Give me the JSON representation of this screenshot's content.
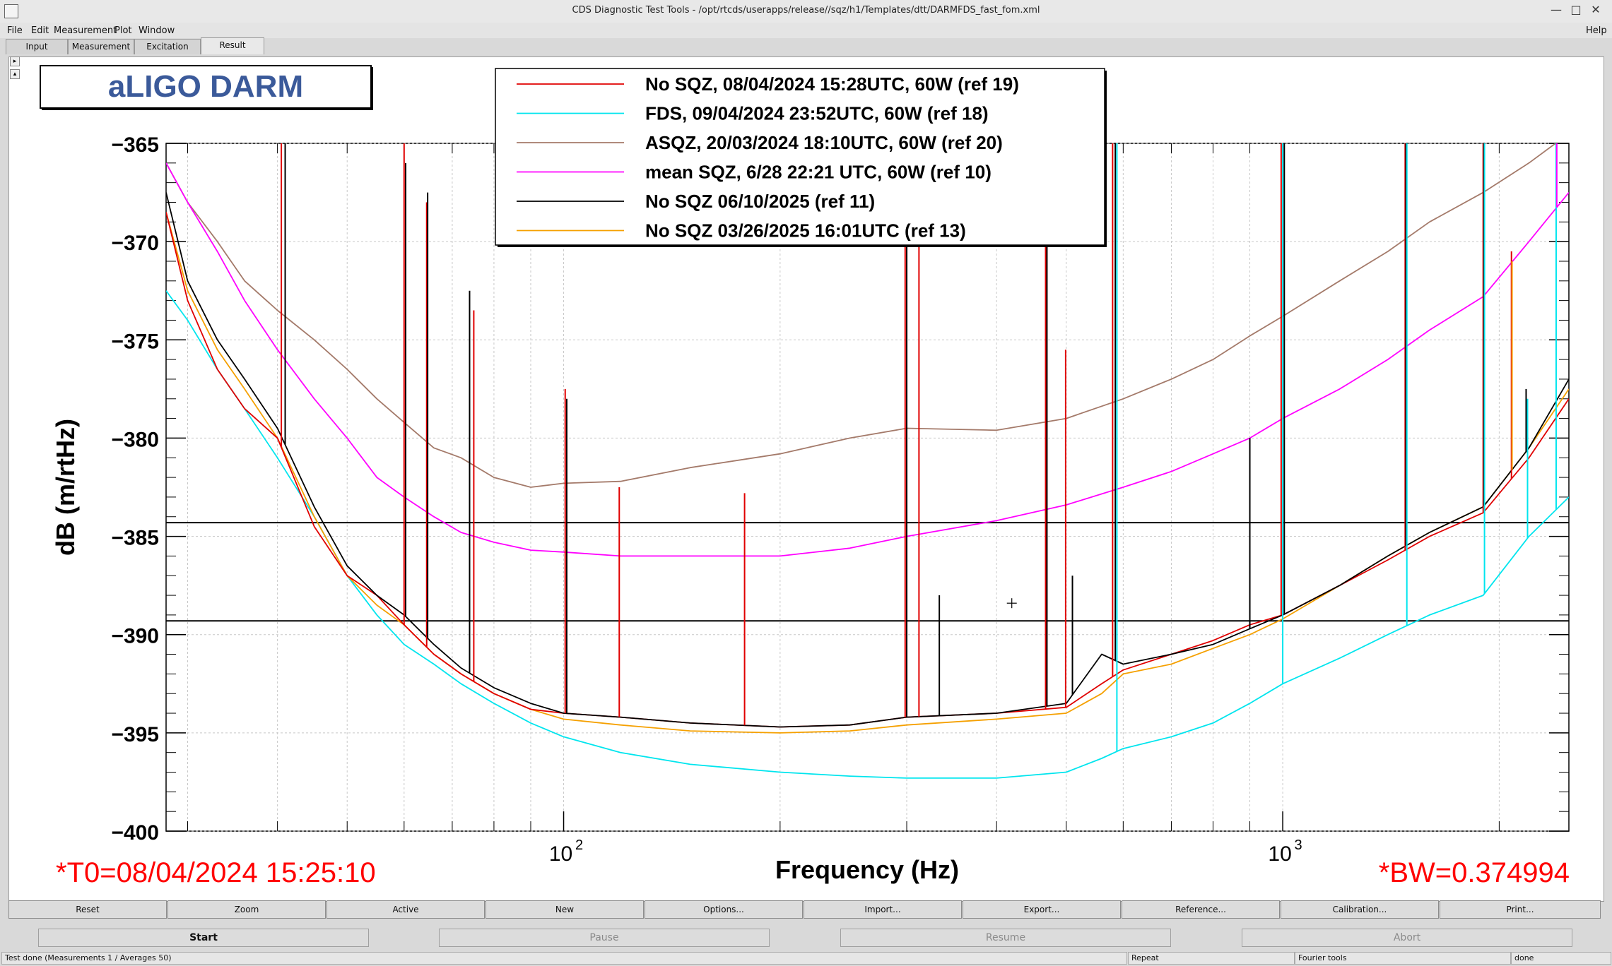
{
  "window": {
    "title": "CDS Diagnostic Test Tools - /opt/rtcds/userapps/release//sqz/h1/Templates/dtt/DARMFDS_fast_fom.xml",
    "controls": [
      "—",
      "□",
      "✕"
    ]
  },
  "menu": {
    "items": [
      "File",
      "Edit",
      "Measurement",
      "Plot",
      "Window"
    ],
    "help": "Help"
  },
  "tabs": [
    "Input",
    "Measurement",
    "Excitation",
    "Result"
  ],
  "active_tab": "Result",
  "chart_data": {
    "type": "line",
    "title": "aLIGO DARM",
    "xlabel": "Frequency (Hz)",
    "ylabel": "dB (m/rtHz)",
    "x_scale": "log",
    "xlim": [
      28,
      2500
    ],
    "ylim": [
      -400,
      -365
    ],
    "y_ticks": [
      -365,
      -370,
      -375,
      -380,
      -385,
      -390,
      -395,
      -400
    ],
    "y_tick_labels": [
      "−365",
      "−370",
      "−375",
      "−380",
      "−385",
      "−390",
      "−395",
      "−400"
    ],
    "x_major_ticks": [
      100,
      1000
    ],
    "x_tick_labels": [
      "10",
      "10"
    ],
    "x_tick_exponents": [
      "2",
      "3"
    ],
    "grid": true,
    "legend_placement": "top-center",
    "horizontal_lines": [
      -384.3,
      -389.3
    ],
    "cursor_marker": {
      "x": 420,
      "y": -388.4
    },
    "annotations": {
      "t0": "*T0=08/04/2024 15:25:10",
      "bw": "*BW=0.374994"
    },
    "series": [
      {
        "name": "No SQZ, 08/04/2024 15:28UTC, 60W (ref 19)",
        "color": "#e00000",
        "points": [
          [
            28,
            -368.5
          ],
          [
            30,
            -373
          ],
          [
            33,
            -376.5
          ],
          [
            36,
            -378.5
          ],
          [
            40,
            -380
          ],
          [
            45,
            -384.5
          ],
          [
            50,
            -387
          ],
          [
            55,
            -388
          ],
          [
            60,
            -389.5
          ],
          [
            66,
            -391
          ],
          [
            72,
            -392
          ],
          [
            80,
            -393
          ],
          [
            90,
            -393.8
          ],
          [
            100,
            -394
          ],
          [
            120,
            -394.2
          ],
          [
            150,
            -394.5
          ],
          [
            200,
            -394.7
          ],
          [
            250,
            -394.6
          ],
          [
            300,
            -394.2
          ],
          [
            400,
            -394
          ],
          [
            500,
            -393.7
          ],
          [
            560,
            -392.5
          ],
          [
            600,
            -391.8
          ],
          [
            700,
            -391
          ],
          [
            800,
            -390.3
          ],
          [
            900,
            -389.5
          ],
          [
            1000,
            -389
          ],
          [
            1200,
            -387.5
          ],
          [
            1400,
            -386.2
          ],
          [
            1600,
            -385
          ],
          [
            1900,
            -383.8
          ],
          [
            2200,
            -381
          ],
          [
            2500,
            -378
          ]
        ]
      },
      {
        "name": "FDS, 09/04/2024 23:52UTC, 60W (ref 18)",
        "color": "#00e5ee",
        "points": [
          [
            28,
            -372.5
          ],
          [
            30,
            -374
          ],
          [
            33,
            -376.5
          ],
          [
            36,
            -378.5
          ],
          [
            40,
            -381
          ],
          [
            45,
            -384
          ],
          [
            50,
            -387
          ],
          [
            55,
            -389
          ],
          [
            60,
            -390.5
          ],
          [
            66,
            -391.5
          ],
          [
            72,
            -392.5
          ],
          [
            80,
            -393.5
          ],
          [
            90,
            -394.5
          ],
          [
            100,
            -395.2
          ],
          [
            120,
            -396
          ],
          [
            150,
            -396.6
          ],
          [
            200,
            -397
          ],
          [
            250,
            -397.2
          ],
          [
            300,
            -397.3
          ],
          [
            400,
            -397.3
          ],
          [
            500,
            -397
          ],
          [
            560,
            -396.3
          ],
          [
            600,
            -395.8
          ],
          [
            700,
            -395.2
          ],
          [
            800,
            -394.5
          ],
          [
            900,
            -393.5
          ],
          [
            1000,
            -392.5
          ],
          [
            1200,
            -391.2
          ],
          [
            1400,
            -390
          ],
          [
            1600,
            -389
          ],
          [
            1900,
            -388
          ],
          [
            2200,
            -385
          ],
          [
            2500,
            -383
          ]
        ]
      },
      {
        "name": "ASQZ, 20/03/2024 18:10UTC, 60W (ref 20)",
        "color": "#a47a6a",
        "points": [
          [
            28,
            -366
          ],
          [
            30,
            -368
          ],
          [
            33,
            -370
          ],
          [
            36,
            -372
          ],
          [
            40,
            -373.5
          ],
          [
            45,
            -375
          ],
          [
            50,
            -376.5
          ],
          [
            55,
            -378
          ],
          [
            60,
            -379.2
          ],
          [
            66,
            -380.5
          ],
          [
            72,
            -381
          ],
          [
            80,
            -382
          ],
          [
            90,
            -382.5
          ],
          [
            100,
            -382.3
          ],
          [
            120,
            -382.2
          ],
          [
            150,
            -381.5
          ],
          [
            200,
            -380.8
          ],
          [
            250,
            -380
          ],
          [
            300,
            -379.5
          ],
          [
            400,
            -379.6
          ],
          [
            500,
            -379
          ],
          [
            600,
            -378
          ],
          [
            700,
            -377
          ],
          [
            800,
            -376
          ],
          [
            900,
            -374.8
          ],
          [
            1000,
            -373.8
          ],
          [
            1200,
            -372
          ],
          [
            1400,
            -370.5
          ],
          [
            1600,
            -369
          ],
          [
            1900,
            -367.5
          ],
          [
            2200,
            -366
          ],
          [
            2500,
            -364.5
          ]
        ]
      },
      {
        "name": "mean SQZ, 6/28 22:21 UTC, 60W (ref 10)",
        "color": "#ff00ff",
        "points": [
          [
            28,
            -366
          ],
          [
            30,
            -368
          ],
          [
            33,
            -370.5
          ],
          [
            36,
            -373
          ],
          [
            40,
            -375.5
          ],
          [
            45,
            -378
          ],
          [
            50,
            -380
          ],
          [
            55,
            -382
          ],
          [
            60,
            -383
          ],
          [
            66,
            -384
          ],
          [
            72,
            -384.8
          ],
          [
            80,
            -385.3
          ],
          [
            90,
            -385.7
          ],
          [
            100,
            -385.8
          ],
          [
            120,
            -386
          ],
          [
            150,
            -386
          ],
          [
            200,
            -386
          ],
          [
            250,
            -385.6
          ],
          [
            300,
            -385
          ],
          [
            400,
            -384.2
          ],
          [
            500,
            -383.4
          ],
          [
            600,
            -382.5
          ],
          [
            700,
            -381.7
          ],
          [
            800,
            -380.8
          ],
          [
            900,
            -380
          ],
          [
            1000,
            -379
          ],
          [
            1200,
            -377.5
          ],
          [
            1400,
            -376
          ],
          [
            1600,
            -374.5
          ],
          [
            1900,
            -372.8
          ],
          [
            2200,
            -370
          ],
          [
            2500,
            -367.5
          ]
        ]
      },
      {
        "name": "No SQZ 06/10/2025 (ref 11)",
        "color": "#000000",
        "points": [
          [
            28,
            -367.5
          ],
          [
            30,
            -372
          ],
          [
            33,
            -375
          ],
          [
            36,
            -377
          ],
          [
            40,
            -379.5
          ],
          [
            45,
            -383.5
          ],
          [
            50,
            -386.5
          ],
          [
            55,
            -388
          ],
          [
            60,
            -389
          ],
          [
            66,
            -390.5
          ],
          [
            72,
            -391.7
          ],
          [
            80,
            -392.7
          ],
          [
            90,
            -393.5
          ],
          [
            100,
            -394
          ],
          [
            120,
            -394.2
          ],
          [
            150,
            -394.5
          ],
          [
            200,
            -394.7
          ],
          [
            250,
            -394.6
          ],
          [
            300,
            -394.2
          ],
          [
            400,
            -394
          ],
          [
            500,
            -393.5
          ],
          [
            560,
            -391
          ],
          [
            600,
            -391.5
          ],
          [
            700,
            -391
          ],
          [
            800,
            -390.5
          ],
          [
            900,
            -389.7
          ],
          [
            1000,
            -389
          ],
          [
            1200,
            -387.5
          ],
          [
            1400,
            -386
          ],
          [
            1600,
            -384.8
          ],
          [
            1900,
            -383.5
          ],
          [
            2200,
            -380.5
          ],
          [
            2500,
            -377
          ]
        ]
      },
      {
        "name": "No SQZ 03/26/2025 16:01UTC (ref 13)",
        "color": "#f5a000",
        "points": [
          [
            28,
            -368.5
          ],
          [
            30,
            -372.5
          ],
          [
            33,
            -375.5
          ],
          [
            36,
            -377.5
          ],
          [
            40,
            -380
          ],
          [
            45,
            -384
          ],
          [
            50,
            -387
          ],
          [
            55,
            -388.5
          ],
          [
            60,
            -389.5
          ],
          [
            66,
            -391
          ],
          [
            72,
            -392
          ],
          [
            80,
            -393
          ],
          [
            90,
            -393.8
          ],
          [
            100,
            -394.3
          ],
          [
            120,
            -394.6
          ],
          [
            150,
            -394.9
          ],
          [
            200,
            -395
          ],
          [
            250,
            -394.9
          ],
          [
            300,
            -394.6
          ],
          [
            400,
            -394.3
          ],
          [
            500,
            -394
          ],
          [
            560,
            -393
          ],
          [
            600,
            -392
          ],
          [
            700,
            -391.5
          ],
          [
            800,
            -390.7
          ],
          [
            900,
            -390
          ],
          [
            1000,
            -389.2
          ],
          [
            1200,
            -387.5
          ],
          [
            1400,
            -386
          ],
          [
            1600,
            -384.8
          ],
          [
            1900,
            -383.5
          ],
          [
            2200,
            -380.5
          ],
          [
            2500,
            -377.5
          ]
        ]
      }
    ],
    "spikes": [
      {
        "x": 40.5,
        "y": -365,
        "color": "#e00000"
      },
      {
        "x": 41,
        "y": -365,
        "color": "#000000"
      },
      {
        "x": 60,
        "y": -365,
        "color": "#e00000"
      },
      {
        "x": 60.3,
        "y": -366,
        "color": "#000000"
      },
      {
        "x": 64.5,
        "y": -368,
        "color": "#e00000"
      },
      {
        "x": 64.7,
        "y": -367.5,
        "color": "#000000"
      },
      {
        "x": 74,
        "y": -372.5,
        "color": "#000000"
      },
      {
        "x": 75,
        "y": -373.5,
        "color": "#e00000"
      },
      {
        "x": 100.5,
        "y": -377.5,
        "color": "#e00000"
      },
      {
        "x": 101,
        "y": -378,
        "color": "#000000"
      },
      {
        "x": 119.5,
        "y": -382.5,
        "color": "#e00000"
      },
      {
        "x": 178.5,
        "y": -382.8,
        "color": "#e00000"
      },
      {
        "x": 298.5,
        "y": -365,
        "color": "#e00000"
      },
      {
        "x": 300,
        "y": -365,
        "color": "#000000"
      },
      {
        "x": 312,
        "y": -365,
        "color": "#e00000"
      },
      {
        "x": 333,
        "y": -388,
        "color": "#000000"
      },
      {
        "x": 468,
        "y": -365,
        "color": "#e00000"
      },
      {
        "x": 470,
        "y": -368,
        "color": "#000000"
      },
      {
        "x": 499,
        "y": -375.5,
        "color": "#e00000"
      },
      {
        "x": 510,
        "y": -387,
        "color": "#000000"
      },
      {
        "x": 580,
        "y": -365,
        "color": "#e00000"
      },
      {
        "x": 585,
        "y": -365,
        "color": "#000000"
      },
      {
        "x": 588,
        "y": -365,
        "color": "#00e5ee"
      },
      {
        "x": 900,
        "y": -380,
        "color": "#000000"
      },
      {
        "x": 995,
        "y": -365,
        "color": "#e00000"
      },
      {
        "x": 1000,
        "y": -365,
        "color": "#00e5ee"
      },
      {
        "x": 1005,
        "y": -365,
        "color": "#000000"
      },
      {
        "x": 1480,
        "y": -365,
        "color": "#e00000"
      },
      {
        "x": 1484,
        "y": -365,
        "color": "#000000"
      },
      {
        "x": 1488,
        "y": -365,
        "color": "#00e5ee"
      },
      {
        "x": 1900,
        "y": -365,
        "color": "#e00000"
      },
      {
        "x": 1905,
        "y": -365,
        "color": "#000000"
      },
      {
        "x": 1908,
        "y": -365,
        "color": "#00e5ee"
      },
      {
        "x": 2080,
        "y": -370.5,
        "color": "#e00000"
      },
      {
        "x": 2084,
        "y": -371,
        "color": "#f5a000"
      },
      {
        "x": 2180,
        "y": -377.5,
        "color": "#000000"
      },
      {
        "x": 2190,
        "y": -378,
        "color": "#00e5ee"
      },
      {
        "x": 2400,
        "y": -365,
        "color": "#00e5ee"
      },
      {
        "x": 2405,
        "y": -365,
        "color": "#ff00ff"
      }
    ]
  },
  "buttons": [
    "Reset",
    "Zoom",
    "Active",
    "New",
    "Options...",
    "Import...",
    "Export...",
    "Reference...",
    "Calibration...",
    "Print..."
  ],
  "controls": {
    "start": "Start",
    "pause": "Pause",
    "resume": "Resume",
    "abort": "Abort"
  },
  "status": {
    "message": "Test done (Measurements 1 / Averages 50)",
    "repeat": "Repeat",
    "tools": "Fourier tools",
    "state": "done"
  }
}
